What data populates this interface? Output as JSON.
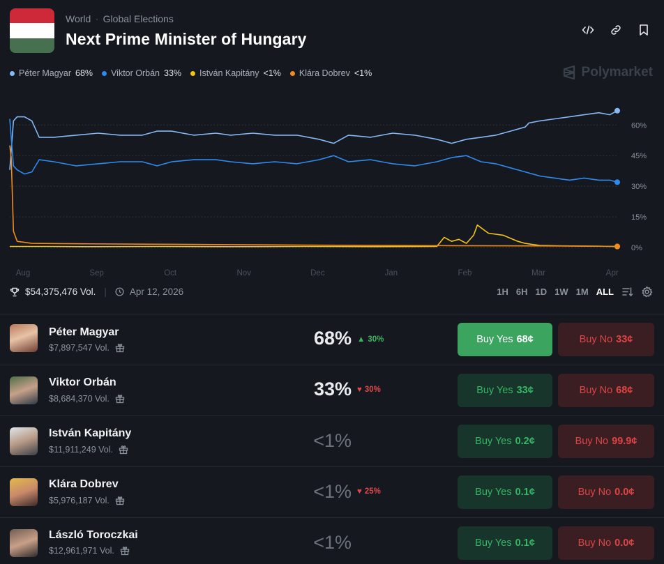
{
  "header": {
    "breadcrumb": {
      "category": "World",
      "separator": "·",
      "subcategory": "Global Elections"
    },
    "title": "Next Prime Minister of Hungary",
    "actions": [
      "embed-icon",
      "link-icon",
      "bookmark-icon"
    ],
    "flag_colors": [
      "#ce2939",
      "#ffffff",
      "#477050"
    ]
  },
  "brand": {
    "name": "Polymarket"
  },
  "legend": [
    {
      "name": "Péter Magyar",
      "value": "68%",
      "color": "#86b8f5"
    },
    {
      "name": "Viktor Orbán",
      "value": "33%",
      "color": "#2f8aef"
    },
    {
      "name": "István Kapitány",
      "value": "<1%",
      "color": "#f2c418"
    },
    {
      "name": "Klára Dobrev",
      "value": "<1%",
      "color": "#f28b1e"
    }
  ],
  "stats": {
    "volume": "$54,375,476 Vol.",
    "date": "Apr 12, 2026"
  },
  "ranges": {
    "items": [
      "1H",
      "6H",
      "1D",
      "1W",
      "1M",
      "ALL"
    ],
    "active": "ALL"
  },
  "chart_data": {
    "type": "line",
    "title": "Next Prime Minister of Hungary",
    "xlabel": "",
    "ylabel": "",
    "x_tick_labels": [
      "Aug",
      "Sep",
      "Oct",
      "Nov",
      "Dec",
      "Jan",
      "Feb",
      "Mar",
      "Apr"
    ],
    "y_tick_labels": [
      "60%",
      "45%",
      "30%",
      "15%",
      "0%"
    ],
    "y_ticks": [
      60,
      45,
      30,
      15,
      0
    ],
    "ylim": [
      0,
      70
    ],
    "xlim": [
      0,
      8.25
    ],
    "grid": true,
    "legend_position": "top-left",
    "series": [
      {
        "name": "Péter Magyar",
        "color": "#86b8f5",
        "x": [
          0,
          0.05,
          0.1,
          0.2,
          0.3,
          0.4,
          0.6,
          0.9,
          1.2,
          1.5,
          1.8,
          2.0,
          2.2,
          2.5,
          2.8,
          3.0,
          3.3,
          3.6,
          3.9,
          4.2,
          4.4,
          4.6,
          4.9,
          5.2,
          5.5,
          5.8,
          6.0,
          6.2,
          6.4,
          6.6,
          6.8,
          7.0,
          7.05,
          7.2,
          7.4,
          7.6,
          7.8,
          8.0,
          8.15,
          8.25
        ],
        "values": [
          38,
          62,
          64,
          64,
          62,
          54,
          54,
          55,
          56,
          55,
          55,
          57,
          57,
          55,
          56,
          55,
          56,
          55,
          55,
          53,
          51,
          55,
          54,
          56,
          55,
          53,
          51,
          53,
          54,
          55,
          57,
          59,
          61,
          62,
          63,
          64,
          65,
          66,
          65,
          67
        ]
      },
      {
        "name": "Viktor Orbán",
        "color": "#2f8aef",
        "x": [
          0,
          0.05,
          0.1,
          0.2,
          0.3,
          0.4,
          0.6,
          0.9,
          1.2,
          1.5,
          1.8,
          2.0,
          2.2,
          2.5,
          2.8,
          3.0,
          3.3,
          3.6,
          3.9,
          4.2,
          4.4,
          4.6,
          4.9,
          5.2,
          5.5,
          5.8,
          6.0,
          6.2,
          6.4,
          6.6,
          6.8,
          7.0,
          7.2,
          7.4,
          7.6,
          7.8,
          8.0,
          8.15,
          8.25
        ],
        "values": [
          63,
          40,
          38,
          36,
          37,
          43,
          42,
          40,
          41,
          42,
          42,
          40,
          42,
          43,
          43,
          42,
          41,
          42,
          41,
          43,
          45,
          42,
          43,
          41,
          40,
          42,
          44,
          45,
          42,
          41,
          39,
          37,
          35,
          34,
          33,
          34,
          33,
          33,
          32
        ]
      },
      {
        "name": "István Kapitány",
        "color": "#f2c418",
        "x": [
          0,
          0.5,
          1.0,
          2.0,
          3.0,
          4.0,
          5.0,
          5.8,
          5.9,
          6.0,
          6.1,
          6.2,
          6.3,
          6.35,
          6.5,
          6.7,
          6.9,
          7.0,
          7.2,
          7.5,
          8.0,
          8.25
        ],
        "values": [
          0.5,
          0.5,
          0.4,
          0.5,
          0.4,
          0.5,
          0.4,
          0.5,
          5,
          3,
          4,
          2,
          6,
          11,
          7,
          6,
          3,
          2,
          1,
          0.8,
          0.6,
          0.5
        ]
      },
      {
        "name": "Klára Dobrev",
        "color": "#f28b1e",
        "x": [
          0,
          0.02,
          0.05,
          0.1,
          0.3,
          1.0,
          2.0,
          3.0,
          4.0,
          5.0,
          6.0,
          7.0,
          8.0,
          8.25
        ],
        "values": [
          50,
          44,
          8,
          3,
          2,
          1.8,
          1.6,
          1.4,
          1.2,
          1.0,
          0.9,
          0.8,
          0.6,
          0.5
        ]
      }
    ]
  },
  "candidates": [
    {
      "name": "Péter Magyar",
      "volume": "$7,897,547 Vol.",
      "pct": "68%",
      "change": "30%",
      "change_dir": "up",
      "yes_label": "Buy Yes",
      "yes_price": "68¢",
      "no_label": "Buy No",
      "no_price": "33¢"
    },
    {
      "name": "Viktor Orbán",
      "volume": "$8,684,370 Vol.",
      "pct": "33%",
      "change": "30%",
      "change_dir": "down",
      "yes_label": "Buy Yes",
      "yes_price": "33¢",
      "no_label": "Buy No",
      "no_price": "68¢"
    },
    {
      "name": "István Kapitány",
      "volume": "$11,911,249 Vol.",
      "pct": "<1%",
      "change": "",
      "change_dir": "",
      "yes_label": "Buy Yes",
      "yes_price": "0.2¢",
      "no_label": "Buy No",
      "no_price": "99.9¢"
    },
    {
      "name": "Klára Dobrev",
      "volume": "$5,976,187 Vol.",
      "pct": "<1%",
      "change": "25%",
      "change_dir": "down",
      "yes_label": "Buy Yes",
      "yes_price": "0.1¢",
      "no_label": "Buy No",
      "no_price": "0.0¢"
    },
    {
      "name": "László Toroczkai",
      "volume": "$12,961,971 Vol.",
      "pct": "<1%",
      "change": "",
      "change_dir": "",
      "yes_label": "Buy Yes",
      "yes_price": "0.1¢",
      "no_label": "Buy No",
      "no_price": "0.0¢"
    }
  ]
}
